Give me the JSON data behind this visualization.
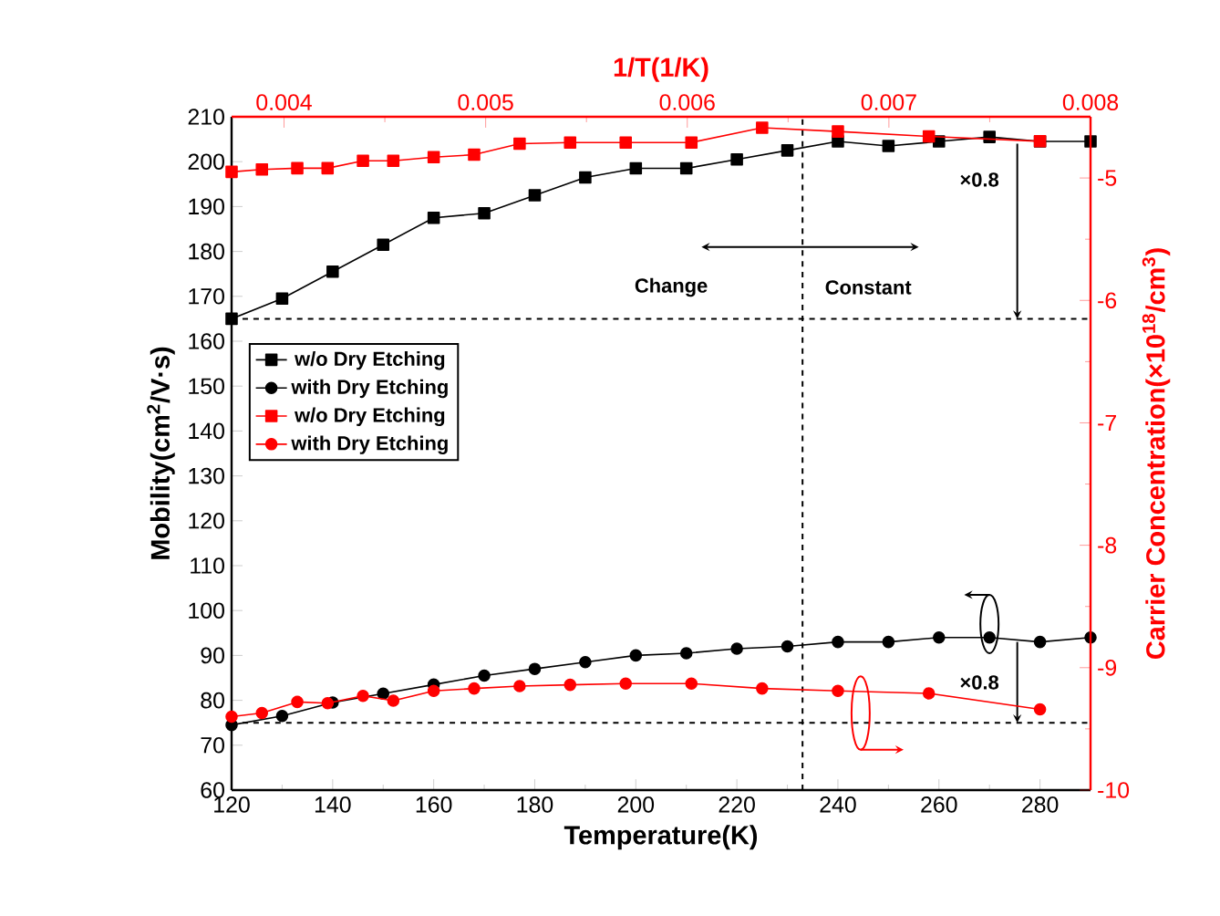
{
  "chart_data": {
    "type": "line",
    "xlabel": "Temperature(K)",
    "ylabel": "Mobility(cm$^{2}$/V·s)",
    "y2label": "Carrier Concentration(×10$^{18}$/cm$^{3}$)",
    "x2label": "1/T(1/K)",
    "xlim": [
      120,
      290
    ],
    "xticks": [
      120,
      140,
      160,
      180,
      200,
      220,
      240,
      260,
      280
    ],
    "ylim": [
      60,
      210
    ],
    "yticks": [
      60,
      70,
      80,
      90,
      100,
      110,
      120,
      130,
      140,
      150,
      160,
      170,
      180,
      190,
      200,
      210
    ],
    "y2lim": [
      -10,
      -4.5
    ],
    "y2ticks": [
      -10,
      -9,
      -8,
      -7,
      -6,
      -5
    ],
    "x2lim": [
      0.00374,
      0.008
    ],
    "x2ticks": [
      0.004,
      0.005,
      0.006,
      0.007,
      0.008
    ],
    "series": [
      {
        "name": "w/o Dry Etching",
        "color": "#000000",
        "marker": "square",
        "x": [
          120,
          130,
          140,
          150,
          160,
          170,
          180,
          190,
          200,
          210,
          220,
          230,
          240,
          250,
          260,
          270,
          280,
          290
        ],
        "values": [
          165,
          169.5,
          175.5,
          181.5,
          187.5,
          188.5,
          192.5,
          196.5,
          198.5,
          198.5,
          200.5,
          202.5,
          204.5,
          203.5,
          204.5,
          205.5,
          204.5,
          204.5
        ]
      },
      {
        "name": "with Dry Etching",
        "color": "#000000",
        "marker": "circle",
        "x": [
          120,
          130,
          140,
          150,
          160,
          170,
          180,
          190,
          200,
          210,
          220,
          230,
          240,
          250,
          260,
          270,
          280,
          290
        ],
        "values": [
          74.5,
          76.5,
          79.5,
          81.5,
          83.5,
          85.5,
          87,
          88.5,
          90,
          90.5,
          91.5,
          92,
          93,
          93,
          94,
          94,
          93,
          94
        ]
      },
      {
        "name": "w/o Dry Etching",
        "color": "#ff0000",
        "marker": "square",
        "axis": "y2",
        "x": [
          120,
          126,
          133,
          139,
          146,
          152,
          160,
          168,
          177,
          187,
          198,
          211,
          225,
          240,
          258,
          280
        ],
        "values": [
          -4.95,
          -4.93,
          -4.92,
          -4.92,
          -4.86,
          -4.86,
          -4.83,
          -4.81,
          -4.72,
          -4.71,
          -4.71,
          -4.71,
          -4.59,
          -4.62,
          -4.66,
          -4.7
        ]
      },
      {
        "name": "with Dry Etching",
        "color": "#ff0000",
        "marker": "circle",
        "axis": "y2",
        "x": [
          120,
          126,
          133,
          139,
          146,
          152,
          160,
          168,
          177,
          187,
          198,
          211,
          225,
          240,
          258,
          280
        ],
        "values": [
          -9.4,
          -9.37,
          -9.28,
          -9.29,
          -9.23,
          -9.27,
          -9.19,
          -9.17,
          -9.15,
          -9.14,
          -9.13,
          -9.13,
          -9.17,
          -9.19,
          -9.21,
          -9.34
        ]
      }
    ],
    "ref_lines": [
      {
        "axis": "y",
        "value": 165,
        "color": "#000000",
        "line_style": "dashed"
      },
      {
        "axis": "y",
        "value": 75,
        "color": "#000000",
        "line_style": "dashed"
      },
      {
        "axis": "x",
        "value": 233,
        "color": "#000000",
        "line_style": "dashed"
      }
    ],
    "annotations": [
      "×0.8",
      "Change",
      "Constant",
      "×0.8"
    ],
    "legend": "left",
    "grid": false,
    "line_style": "solid"
  }
}
